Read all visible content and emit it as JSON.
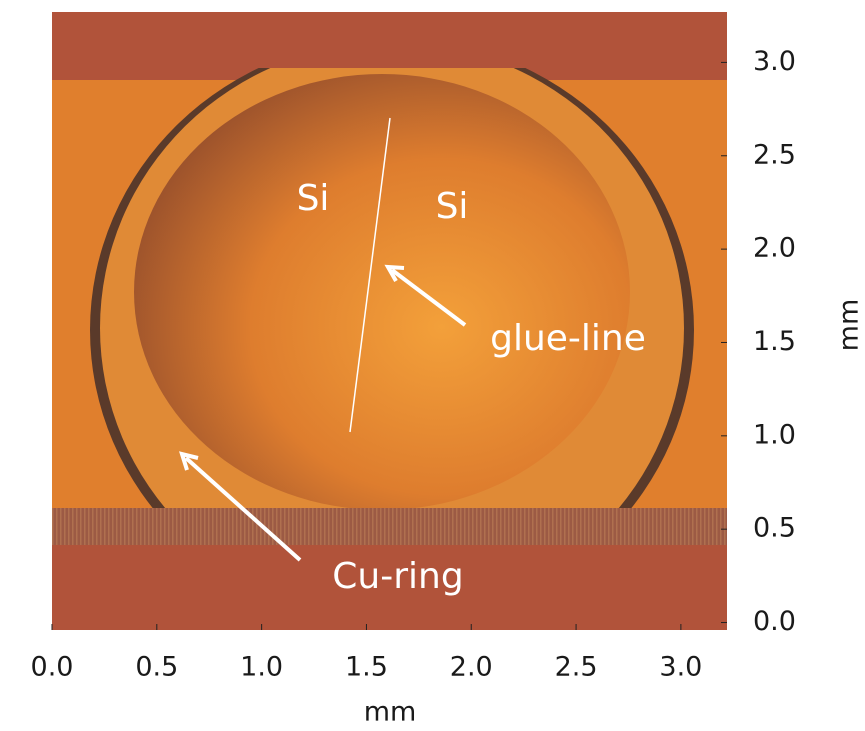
{
  "chart_data": {
    "type": "image",
    "xlabel": "mm",
    "ylabel": "mm",
    "xlim": [
      0,
      3.22
    ],
    "ylim": [
      -0.04,
      3.27
    ],
    "xticks": [
      {
        "value": 0,
        "label": "0.0"
      },
      0.5,
      {
        "value": 1,
        "label": "1.0"
      },
      1.5,
      {
        "value": 2,
        "label": "2.0"
      },
      2.5,
      {
        "value": 3,
        "label": "3.0"
      }
    ],
    "yticks": [
      {
        "value": 0,
        "label": "0.0"
      },
      0.5,
      {
        "value": 1,
        "label": "1.0"
      },
      1.5,
      {
        "value": 2,
        "label": "2.0"
      },
      2.5,
      {
        "value": 3,
        "label": "3.0"
      }
    ],
    "annotations": [
      "Si",
      "Si",
      "glue-line",
      "Cu-ring"
    ]
  }
}
